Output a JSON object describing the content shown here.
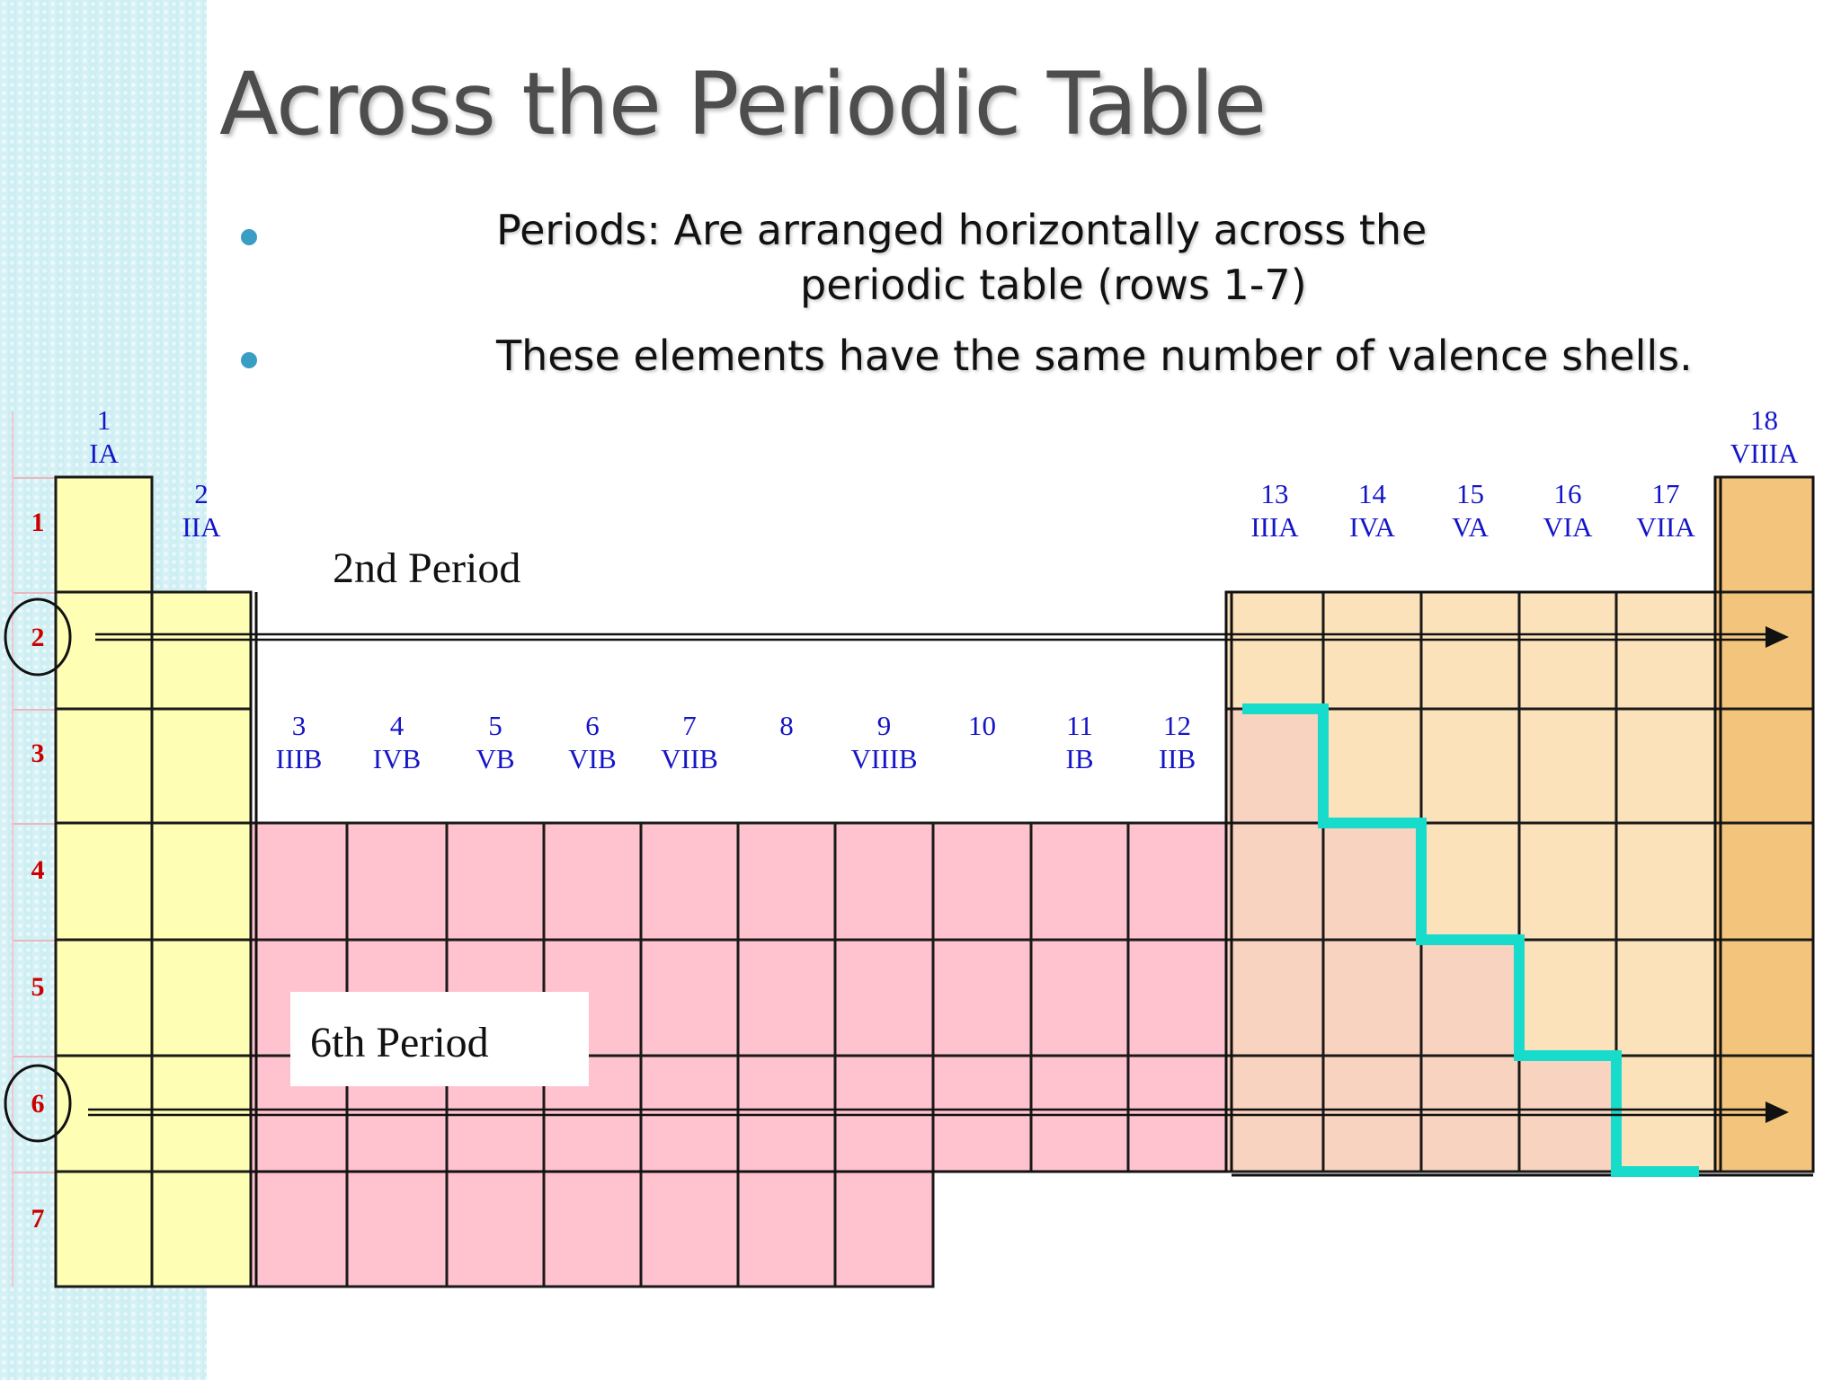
{
  "slide": {
    "title": "Across the Periodic Table",
    "bullet1_line1": "Periods: Are arranged horizontally across the",
    "bullet1_line2": "periodic table (rows 1-7)",
    "bullet2": "These elements have the same number of valence shells."
  },
  "table": {
    "group_labels": [
      {
        "num": "1",
        "roman": "IA"
      },
      {
        "num": "2",
        "roman": "IIA"
      },
      {
        "num": "3",
        "roman": "IIIB"
      },
      {
        "num": "4",
        "roman": "IVB"
      },
      {
        "num": "5",
        "roman": "VB"
      },
      {
        "num": "6",
        "roman": "VIB"
      },
      {
        "num": "7",
        "roman": "VIIB"
      },
      {
        "num": "8",
        "roman": ""
      },
      {
        "num": "9",
        "roman": "VIIIB"
      },
      {
        "num": "10",
        "roman": ""
      },
      {
        "num": "11",
        "roman": "IB"
      },
      {
        "num": "12",
        "roman": "IIB"
      },
      {
        "num": "13",
        "roman": "IIIA"
      },
      {
        "num": "14",
        "roman": "IVA"
      },
      {
        "num": "15",
        "roman": "VA"
      },
      {
        "num": "16",
        "roman": "VIA"
      },
      {
        "num": "17",
        "roman": "VIIA"
      },
      {
        "num": "18",
        "roman": "VIIIA"
      }
    ],
    "period_labels": [
      "1",
      "2",
      "3",
      "4",
      "5",
      "6",
      "7"
    ],
    "circled_periods": [
      "2",
      "6"
    ],
    "annotations": {
      "period2": "2nd Period",
      "period6": "6th Period"
    },
    "colors": {
      "s_block": "#fefeb4",
      "d_block": "#ffc3cf",
      "p_block": "#fbe2ba",
      "noble": "#f3c57c",
      "metalloid": "#f8d3c0",
      "staircase": "#18dccb",
      "group_label": "#1515c8",
      "period_label": "#cc0000",
      "bullet": "#3a9dc4"
    }
  }
}
